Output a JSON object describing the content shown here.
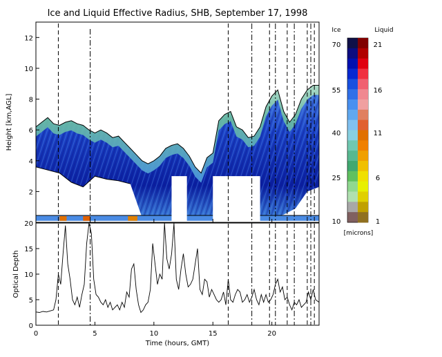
{
  "chart_data": [
    {
      "type": "heatmap",
      "title": "Ice and Liquid Effective Radius, SHB, September 17, 1998",
      "xlabel": "",
      "ylabel": "Height [km,AGL]",
      "xlim": [
        0,
        24
      ],
      "ylim": [
        0,
        13
      ],
      "x_ticks": [
        "0",
        "5",
        "10",
        "15",
        "20"
      ],
      "y_ticks": [
        "2",
        "4",
        "6",
        "8",
        "10",
        "12"
      ],
      "x_tick_values": [
        0,
        5,
        10,
        15,
        20
      ],
      "y_tick_values": [
        2,
        4,
        6,
        8,
        10,
        12
      ],
      "cloud_top_km": [
        [
          0.0,
          6.2
        ],
        [
          0.5,
          6.5
        ],
        [
          1.0,
          6.8
        ],
        [
          1.5,
          6.4
        ],
        [
          2.0,
          6.3
        ],
        [
          2.5,
          6.5
        ],
        [
          3.0,
          6.6
        ],
        [
          3.5,
          6.4
        ],
        [
          4.0,
          6.3
        ],
        [
          4.5,
          6.0
        ],
        [
          5.0,
          5.8
        ],
        [
          5.5,
          6.0
        ],
        [
          6.0,
          5.8
        ],
        [
          6.5,
          5.5
        ],
        [
          7.0,
          5.6
        ],
        [
          7.5,
          5.2
        ],
        [
          8.0,
          4.8
        ],
        [
          8.5,
          4.4
        ],
        [
          9.0,
          4.0
        ],
        [
          9.5,
          3.8
        ],
        [
          10.0,
          4.0
        ],
        [
          10.5,
          4.3
        ],
        [
          11.0,
          4.8
        ],
        [
          11.5,
          5.0
        ],
        [
          12.0,
          5.1
        ],
        [
          12.5,
          4.8
        ],
        [
          13.0,
          4.3
        ],
        [
          13.5,
          3.6
        ],
        [
          14.0,
          3.2
        ],
        [
          14.5,
          4.2
        ],
        [
          15.0,
          4.5
        ],
        [
          15.5,
          6.6
        ],
        [
          16.0,
          7.0
        ],
        [
          16.5,
          7.2
        ],
        [
          17.0,
          6.2
        ],
        [
          17.5,
          6.0
        ],
        [
          18.0,
          5.5
        ],
        [
          18.5,
          5.6
        ],
        [
          19.0,
          6.2
        ],
        [
          19.5,
          7.5
        ],
        [
          20.0,
          8.2
        ],
        [
          20.5,
          8.6
        ],
        [
          21.0,
          7.2
        ],
        [
          21.5,
          6.5
        ],
        [
          22.0,
          7.0
        ],
        [
          22.5,
          8.0
        ],
        [
          23.0,
          8.6
        ],
        [
          23.5,
          8.9
        ],
        [
          24.0,
          8.9
        ]
      ],
      "cloud_base_km": [
        [
          0.0,
          3.6
        ],
        [
          1.0,
          3.4
        ],
        [
          2.0,
          3.2
        ],
        [
          3.0,
          2.6
        ],
        [
          4.0,
          2.3
        ],
        [
          5.0,
          3.0
        ],
        [
          6.0,
          2.8
        ],
        [
          7.0,
          2.7
        ],
        [
          8.0,
          2.5
        ],
        [
          9.0,
          0.3
        ],
        [
          10.0,
          0.2
        ],
        [
          11.0,
          0.2
        ],
        [
          12.0,
          0.2
        ],
        [
          13.0,
          0.3
        ],
        [
          14.0,
          0.3
        ],
        [
          15.0,
          0.3
        ],
        [
          16.0,
          0.3
        ],
        [
          17.0,
          0.3
        ],
        [
          18.0,
          0.3
        ],
        [
          19.0,
          0.3
        ],
        [
          20.0,
          0.3
        ],
        [
          21.0,
          0.5
        ],
        [
          22.0,
          0.9
        ],
        [
          23.0,
          2.0
        ],
        [
          24.0,
          2.3
        ]
      ],
      "liquid_layer_km": [
        0.1,
        0.45
      ],
      "data_gaps_hours": [
        [
          11.5,
          12.8
        ],
        [
          15.0,
          19.0
        ]
      ],
      "data_gap_top_km": 3.0,
      "colorbar": {
        "ice_label": "Ice",
        "liquid_label": "Liquid",
        "ice_ticks": [
          "70",
          "55",
          "40",
          "25",
          "10"
        ],
        "liquid_ticks": [
          "21",
          "16",
          "11",
          "6",
          "1"
        ],
        "units": "[microns]",
        "ice_colors": [
          "#101048",
          "#0c0c80",
          "#0010b0",
          "#0828d0",
          "#1850e0",
          "#3070e8",
          "#4890f0",
          "#60a8f0",
          "#80c0f0",
          "#88d0e0",
          "#70c8b0",
          "#58b890",
          "#40a870",
          "#60c060",
          "#90d890",
          "#b0e0b0",
          "#a8a8a8",
          "#806060"
        ],
        "liquid_colors": [
          "#800000",
          "#b00000",
          "#e00010",
          "#f03040",
          "#f06070",
          "#f08890",
          "#f0a0a0",
          "#e08060",
          "#e06030",
          "#e07000",
          "#f08000",
          "#f0a000",
          "#f0c000",
          "#f0e000",
          "#e8f000",
          "#e0d000",
          "#c0a000",
          "#907020"
        ]
      }
    },
    {
      "type": "line",
      "xlabel": "Time (hours, GMT)",
      "ylabel": "Optical Depth",
      "xlim": [
        0,
        24
      ],
      "ylim": [
        0,
        20
      ],
      "x_ticks": [
        "0",
        "5",
        "10",
        "15",
        "20"
      ],
      "y_ticks": [
        "0",
        "5",
        "10",
        "15",
        "20"
      ],
      "x_tick_values": [
        0,
        5,
        10,
        15,
        20
      ],
      "y_tick_values": [
        0,
        5,
        10,
        15,
        20
      ],
      "series": [
        {
          "x": [
            0.0,
            0.3,
            0.6,
            0.9,
            1.2,
            1.5,
            1.7,
            1.9,
            2.1,
            2.3,
            2.5,
            2.7,
            2.9,
            3.1,
            3.3,
            3.5,
            3.7,
            3.9,
            4.1,
            4.3,
            4.5,
            4.7,
            4.9,
            5.1,
            5.3,
            5.5,
            5.7,
            5.9,
            6.1,
            6.3,
            6.5,
            6.7,
            6.9,
            7.1,
            7.3,
            7.5,
            7.7,
            7.9,
            8.1,
            8.3,
            8.5,
            8.7,
            8.9,
            9.1,
            9.3,
            9.5,
            9.7,
            9.9,
            10.1,
            10.3,
            10.5,
            10.7,
            10.9,
            11.1,
            11.3,
            11.5,
            11.7,
            11.9,
            12.1,
            12.3,
            12.5,
            12.7,
            12.9,
            13.1,
            13.3,
            13.5,
            13.7,
            13.9,
            14.1,
            14.3,
            14.5,
            14.7,
            14.9,
            15.1,
            15.3,
            15.5,
            15.7,
            15.9,
            16.1,
            16.3,
            16.5,
            16.7,
            16.9,
            17.1,
            17.3,
            17.5,
            17.7,
            17.9,
            18.1,
            18.3,
            18.5,
            18.7,
            18.9,
            19.1,
            19.3,
            19.5,
            19.7,
            19.9,
            20.1,
            20.3,
            20.5,
            20.7,
            20.9,
            21.1,
            21.3,
            21.5,
            21.7,
            21.9,
            22.1,
            22.3,
            22.5,
            22.7,
            22.9,
            23.1,
            23.3,
            23.5,
            23.7,
            24.0
          ],
          "y": [
            2.6,
            2.5,
            2.7,
            2.6,
            2.8,
            3.0,
            5.0,
            10.0,
            8.0,
            14.0,
            19.5,
            12.0,
            9.0,
            5.0,
            4.0,
            5.5,
            3.5,
            6.0,
            8.0,
            16.0,
            20.0,
            18.0,
            9.0,
            6.0,
            5.5,
            4.5,
            4.0,
            5.0,
            3.5,
            4.5,
            3.0,
            3.5,
            4.0,
            3.0,
            4.5,
            3.5,
            6.5,
            5.5,
            11.0,
            12.0,
            7.0,
            4.0,
            2.5,
            3.0,
            4.0,
            4.5,
            7.0,
            16.0,
            12.0,
            8.0,
            10.0,
            9.0,
            20.0,
            13.0,
            11.0,
            14.0,
            20.0,
            9.0,
            7.0,
            11.0,
            14.0,
            10.0,
            7.5,
            8.0,
            9.0,
            12.0,
            15.0,
            7.0,
            6.0,
            9.0,
            8.5,
            5.5,
            7.0,
            6.0,
            5.0,
            4.5,
            5.0,
            6.5,
            4.0,
            9.0,
            5.0,
            4.5,
            6.0,
            7.0,
            6.5,
            4.5,
            5.0,
            6.0,
            4.5,
            5.5,
            7.0,
            5.0,
            4.0,
            6.0,
            4.5,
            6.0,
            4.5,
            5.0,
            6.0,
            8.0,
            9.0,
            6.5,
            7.5,
            5.0,
            5.5,
            4.0,
            3.0,
            4.5,
            4.0,
            5.0,
            3.5,
            4.0,
            4.5,
            6.5,
            5.0,
            7.0,
            5.0,
            4.5
          ]
        }
      ]
    }
  ],
  "vertical_markers_hours": [
    1.9,
    4.6,
    16.3,
    18.3,
    19.8,
    20.3,
    21.3,
    21.9,
    23.0,
    23.3,
    23.6
  ],
  "tall_marker_hour": 4.6
}
